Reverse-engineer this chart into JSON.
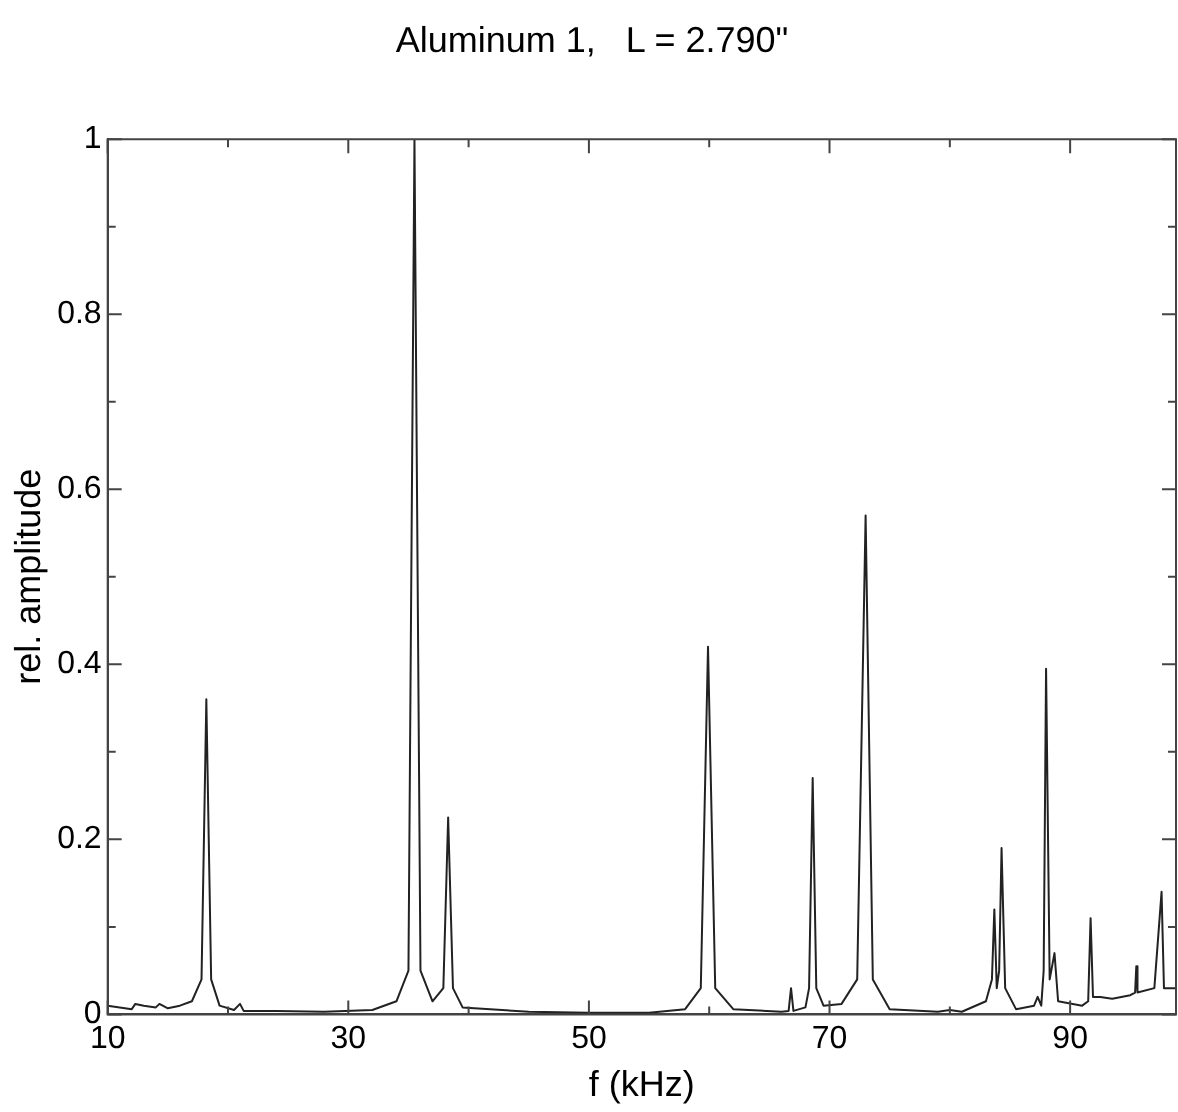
{
  "chart_data": {
    "type": "line",
    "title": "Aluminum 1,   L = 2.790\"",
    "xlabel": "f (kHz)",
    "ylabel": "rel. amplitude",
    "xlim": [
      10,
      98.8
    ],
    "xticks": [
      10,
      {
        "value": 20,
        "label": null
      },
      30,
      {
        "value": 40,
        "label": null
      },
      50,
      {
        "value": 60,
        "label": null
      },
      70,
      {
        "value": 80,
        "label": null
      },
      90
    ],
    "ylim": [
      0,
      1
    ],
    "yticks": [
      0,
      {
        "value": 0.1,
        "label": null
      },
      0.2,
      {
        "value": 0.3,
        "label": null
      },
      0.4,
      {
        "value": 0.5,
        "label": null
      },
      0.6,
      {
        "value": 0.7,
        "label": null
      },
      0.8,
      {
        "value": 0.9,
        "label": null
      },
      1
    ],
    "grid": false,
    "legend": false,
    "marker": "none",
    "line_style": "solid",
    "series": [
      {
        "color": "#222222",
        "x": [
          10,
          11,
          12,
          12.3,
          13,
          14,
          14.3,
          15,
          16,
          17,
          17.8,
          18.2,
          18.6,
          19.3,
          20.5,
          21,
          21.3,
          24,
          28,
          32,
          34,
          35,
          35.5,
          36,
          37,
          37.9,
          38.3,
          38.7,
          39.5,
          45,
          50,
          55,
          58,
          59.3,
          59.9,
          60.5,
          62,
          66,
          66.6,
          66.8,
          67,
          68,
          68.3,
          68.6,
          68.9,
          69.5,
          71,
          72.3,
          73,
          73.6,
          75,
          79,
          80,
          81,
          83,
          83.5,
          83.7,
          83.9,
          84.1,
          84.3,
          84.6,
          85.5,
          87,
          87.3,
          87.6,
          87.8,
          88,
          88.3,
          88.7,
          89,
          91,
          91.5,
          91.7,
          91.9,
          92.5,
          93.5,
          95,
          95.4,
          95.5,
          95.6,
          97,
          97.6,
          97.8,
          98.8
        ],
        "values": [
          0.01,
          0.008,
          0.006,
          0.012,
          0.01,
          0.008,
          0.012,
          0.007,
          0.01,
          0.015,
          0.04,
          0.36,
          0.04,
          0.01,
          0.005,
          0.012,
          0.004,
          0.004,
          0.003,
          0.005,
          0.015,
          0.05,
          1.0,
          0.05,
          0.015,
          0.03,
          0.225,
          0.03,
          0.008,
          0.003,
          0.002,
          0.002,
          0.006,
          0.03,
          0.42,
          0.03,
          0.006,
          0.003,
          0.004,
          0.03,
          0.004,
          0.008,
          0.03,
          0.27,
          0.03,
          0.01,
          0.012,
          0.04,
          0.57,
          0.04,
          0.006,
          0.003,
          0.005,
          0.003,
          0.015,
          0.04,
          0.12,
          0.03,
          0.05,
          0.19,
          0.03,
          0.006,
          0.01,
          0.02,
          0.01,
          0.05,
          0.395,
          0.04,
          0.07,
          0.015,
          0.01,
          0.015,
          0.11,
          0.02,
          0.02,
          0.018,
          0.022,
          0.025,
          0.055,
          0.025,
          0.03,
          0.14,
          0.03,
          0.03
        ]
      }
    ]
  }
}
